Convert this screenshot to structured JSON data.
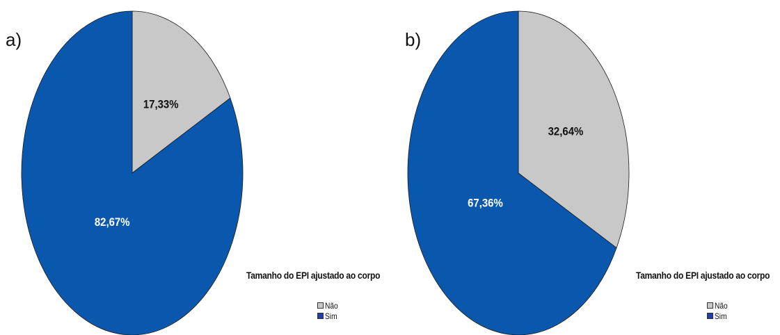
{
  "chart_data": [
    {
      "type": "pie",
      "panel_label": "a)",
      "legend_title": "Tamanho do EPI ajustado ao corpo",
      "legend_position": "bottom-right",
      "slices": [
        {
          "category": "Não",
          "value": 17.33,
          "label": "17,33%",
          "color": "#c8c8c8",
          "legend_color": "#c8c8c8"
        },
        {
          "category": "Sim",
          "value": 82.67,
          "label": "82,67%",
          "color": "#0a58ad",
          "legend_color": "#1f3fa8"
        }
      ]
    },
    {
      "type": "pie",
      "panel_label": "b)",
      "legend_title": "Tamanho do EPI ajustado ao corpo",
      "legend_position": "bottom-right",
      "slices": [
        {
          "category": "Não",
          "value": 32.64,
          "label": "32,64%",
          "color": "#c8c8c8",
          "legend_color": "#c8c8c8"
        },
        {
          "category": "Sim",
          "value": 67.36,
          "label": "67,36%",
          "color": "#0a58ad",
          "legend_color": "#1f3fa8"
        }
      ]
    }
  ]
}
